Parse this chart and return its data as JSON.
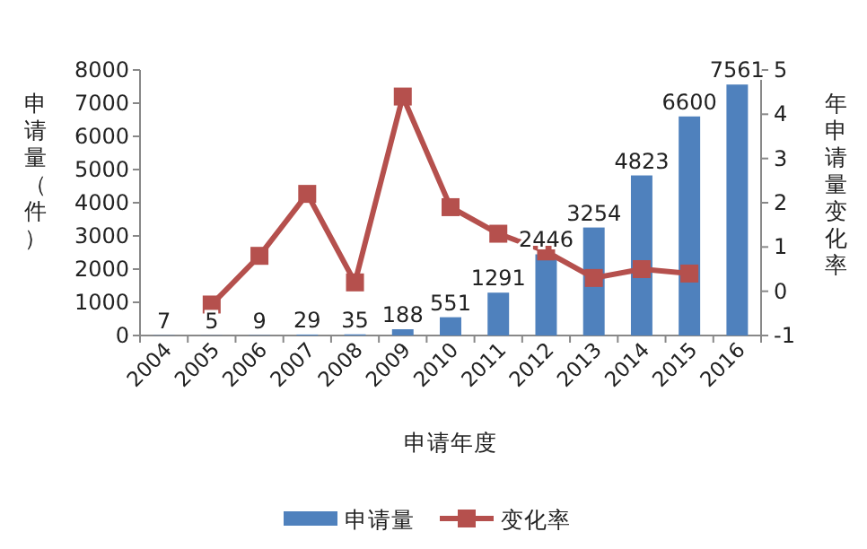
{
  "chart_data": {
    "type": "bar",
    "xlabel": "申请年度",
    "ylabel": "申请量（件）",
    "y2label": "年申请量变化率",
    "categories": [
      "2004",
      "2005",
      "2006",
      "2007",
      "2008",
      "2009",
      "2010",
      "2011",
      "2012",
      "2013",
      "2014",
      "2015",
      "2016"
    ],
    "series": [
      {
        "name": "申请量",
        "color": "#4f81bd",
        "data_labels": true,
        "values": [
          7,
          5,
          9,
          29,
          35,
          188,
          551,
          1291,
          2446,
          3254,
          4823,
          6600,
          7561
        ]
      },
      {
        "name": "变化率",
        "type": "line",
        "axis": "y2",
        "color": "#b5504d",
        "marker": "square",
        "line_style": "solid",
        "values": [
          null,
          -0.3,
          0.8,
          2.2,
          0.2,
          4.4,
          1.9,
          1.3,
          0.9,
          0.3,
          0.5,
          0.4,
          null
        ]
      }
    ],
    "ylim": [
      0,
      8000
    ],
    "yticks": [
      0,
      1000,
      2000,
      3000,
      4000,
      5000,
      6000,
      7000,
      8000
    ],
    "y2lim": [
      -1,
      5
    ],
    "y2ticks": [
      -1,
      0,
      1,
      2,
      3,
      4,
      5
    ],
    "grid": false,
    "legend": "bottom"
  }
}
